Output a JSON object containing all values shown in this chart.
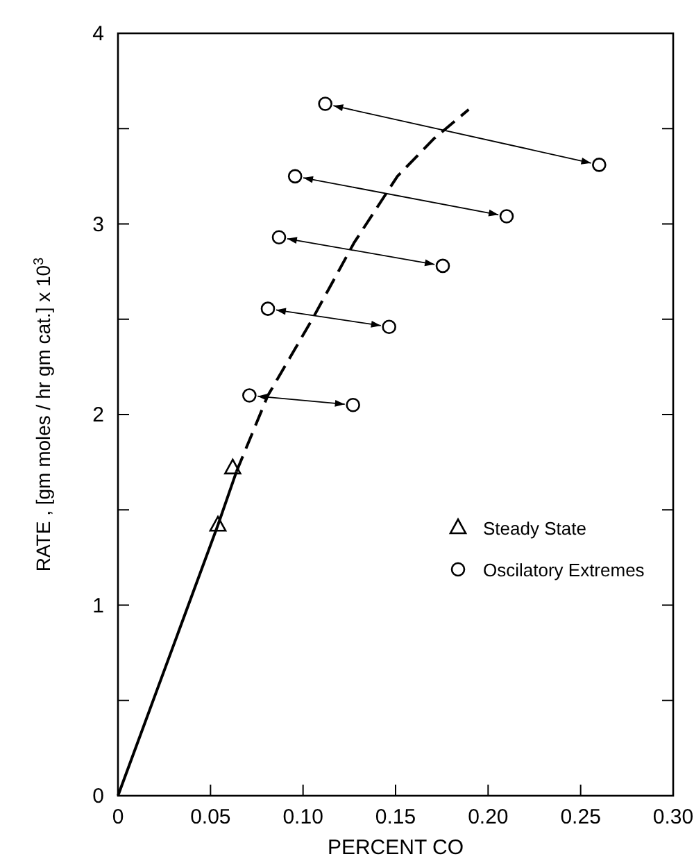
{
  "chart_data": {
    "type": "scatter",
    "xlabel": "PERCENT  CO",
    "ylabel": "RATE ,  [gm moles / hr gm cat.]  x 10$^{3}$",
    "xlim": [
      0,
      0.3
    ],
    "ylim": [
      0,
      4
    ],
    "xticks": [
      0,
      {
        "value": 0.05,
        "label": "0.05"
      },
      {
        "value": 0.1,
        "label": "0.10"
      },
      0.15,
      {
        "value": 0.2,
        "label": "0.20"
      },
      0.25,
      {
        "value": 0.3,
        "label": "0.30"
      }
    ],
    "yticks": [
      0,
      {
        "value": 0.5,
        "label": null
      },
      1,
      {
        "value": 1.5,
        "label": null
      },
      2,
      {
        "value": 2.5,
        "label": null
      },
      3,
      {
        "value": 3.5,
        "label": null
      },
      4
    ],
    "grid": false,
    "legend": "right",
    "series": [
      {
        "name": "Steady State",
        "marker": "triangle",
        "color": "#000000",
        "x": [
          0.054,
          0.062
        ],
        "values": [
          1.42,
          1.72
        ]
      },
      {
        "name": "Oscilatory Extremes",
        "marker": "circle",
        "color": "#000000",
        "x": [
          0.112,
          0.26,
          0.0957,
          0.21,
          0.087,
          0.1755,
          0.081,
          0.1465,
          0.071,
          0.127
        ],
        "values": [
          3.63,
          3.31,
          3.25,
          3.04,
          2.93,
          2.78,
          2.555,
          2.46,
          2.1,
          2.05
        ]
      },
      {
        "type": "line",
        "marker": "none",
        "line_style": "solid",
        "color": "#000000",
        "x": [
          0,
          0.054,
          0.064
        ],
        "values": [
          0,
          1.42,
          1.7
        ]
      },
      {
        "type": "line",
        "marker": "none",
        "line_style": "dashed",
        "color": "#000000",
        "x": [
          0.064,
          0.081,
          0.105,
          0.1275,
          0.151,
          0.171,
          0.1895
        ],
        "values": [
          1.7,
          2.1,
          2.5,
          2.9,
          3.25,
          3.45,
          3.6
        ]
      }
    ]
  }
}
